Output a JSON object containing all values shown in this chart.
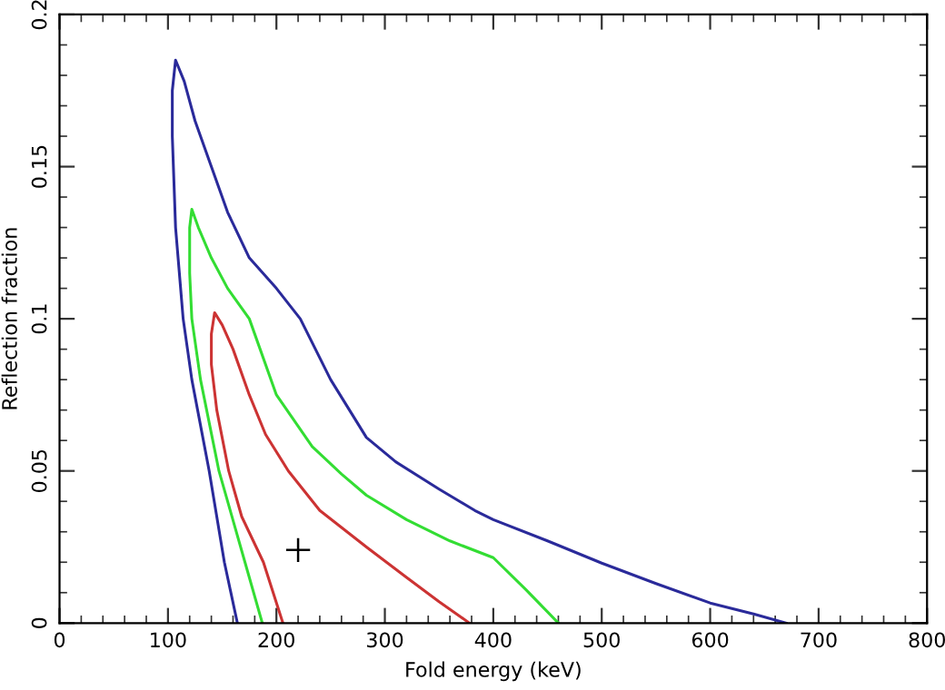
{
  "chart_data": {
    "type": "line",
    "xlabel": "Fold energy (keV)",
    "ylabel": "Reflection fraction",
    "xlim": [
      0,
      800
    ],
    "ylim": [
      0,
      0.2
    ],
    "xticks": [
      0,
      100,
      200,
      300,
      400,
      500,
      600,
      700,
      800
    ],
    "yticks": [
      0,
      0.05,
      0.1,
      0.15,
      0.2
    ],
    "grid": false,
    "line_style": "solid",
    "series": [
      {
        "color": "#2a2a9a",
        "x": [
          164,
          152,
          138,
          122,
          114,
          107,
          104,
          104,
          107,
          115,
          125,
          140,
          155,
          175,
          200,
          222,
          250,
          283,
          310,
          350,
          383,
          400,
          450,
          500,
          550,
          600,
          640,
          670
        ],
        "values": [
          0,
          0.02,
          0.05,
          0.08,
          0.1,
          0.13,
          0.16,
          0.175,
          0.185,
          0.178,
          0.165,
          0.15,
          0.135,
          0.12,
          0.11,
          0.1,
          0.08,
          0.061,
          0.053,
          0.044,
          0.037,
          0.034,
          0.027,
          0.0197,
          0.013,
          0.0066,
          0.003,
          0
        ]
      },
      {
        "color": "#33dd33",
        "x": [
          187,
          171,
          147,
          130,
          122,
          120,
          120,
          122,
          128,
          140,
          155,
          175,
          200,
          233,
          260,
          283,
          320,
          360,
          400,
          430,
          460
        ],
        "values": [
          0,
          0.02,
          0.05,
          0.08,
          0.1,
          0.115,
          0.13,
          0.136,
          0.13,
          0.12,
          0.11,
          0.1,
          0.075,
          0.058,
          0.049,
          0.042,
          0.034,
          0.027,
          0.0215,
          0.011,
          0
        ]
      },
      {
        "color": "#cc3333",
        "x": [
          206,
          188,
          168,
          156,
          145,
          140,
          140,
          143,
          150,
          160,
          175,
          190,
          211,
          240,
          283,
          320,
          350,
          378
        ],
        "values": [
          0,
          0.02,
          0.035,
          0.05,
          0.07,
          0.085,
          0.095,
          0.102,
          0.098,
          0.09,
          0.075,
          0.062,
          0.05,
          0.037,
          0.025,
          0.015,
          0.007,
          0
        ]
      },
      {
        "type": "scatter",
        "color": "#000000",
        "marker": "cross",
        "x": [
          220
        ],
        "values": [
          0.024
        ]
      }
    ]
  }
}
